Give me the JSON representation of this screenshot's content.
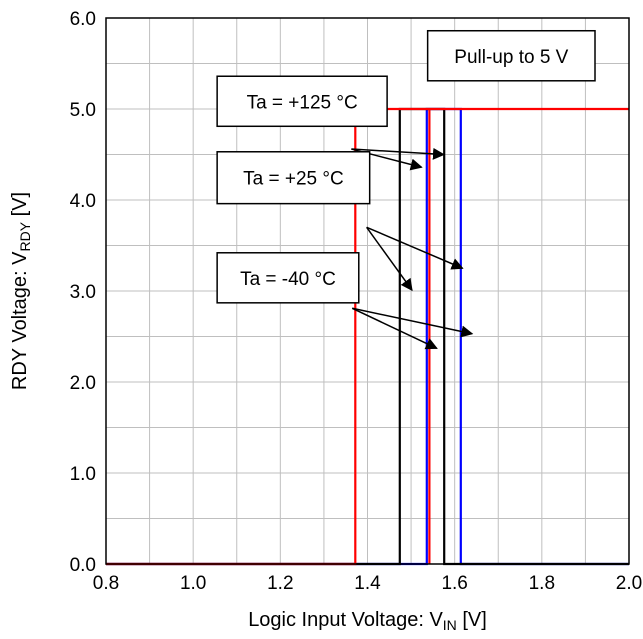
{
  "chart_data": {
    "type": "line",
    "title": "",
    "xlabel": "Logic Input Voltage: V",
    "xlabel_sub": "IN",
    "xlabel_unit": " [V]",
    "ylabel": "RDY Voltage: V",
    "ylabel_sub": "RDY",
    "ylabel_unit": " [V]",
    "xlim": [
      0.8,
      2.0
    ],
    "ylim": [
      0.0,
      6.0
    ],
    "grid": true,
    "xticks": [
      "0.8",
      "1.0",
      "1.2",
      "1.4",
      "1.6",
      "1.8",
      "2.0"
    ],
    "xtick_values": [
      0.8,
      1.0,
      1.2,
      1.4,
      1.6,
      1.8,
      2.0
    ],
    "yticks": [
      "0.0",
      "1.0",
      "2.0",
      "3.0",
      "4.0",
      "5.0",
      "6.0"
    ],
    "ytick_values": [
      0.0,
      1.0,
      2.0,
      3.0,
      4.0,
      5.0,
      6.0
    ],
    "series": [
      {
        "condition": "Ta = -40 °C",
        "color": "#0000ff",
        "x": [
          0.8,
          1.536,
          1.536,
          1.614,
          1.614,
          2.0
        ],
        "y": [
          0,
          0,
          5,
          5,
          0,
          0
        ]
      },
      {
        "condition": "Ta = +25 °C",
        "color": "#000000",
        "x": [
          0.8,
          1.474,
          1.474,
          1.576,
          1.576,
          2.0
        ],
        "y": [
          0,
          0,
          5,
          5,
          0,
          0
        ]
      },
      {
        "condition": "Ta = +125 °C",
        "color": "#ff0000",
        "x": [
          0.8,
          1.372,
          1.372,
          2.0
        ],
        "y": [
          0,
          0,
          5,
          5
        ]
      },
      {
        "condition": "Ta = +125 °C",
        "color": "#ff0000",
        "x": [
          1.542,
          1.542
        ],
        "y": [
          0,
          5
        ]
      }
    ],
    "annotations": [
      {
        "label": "Pull-up to 5 V",
        "box": {
          "x0": 1.538,
          "x1": 1.922,
          "y0": 5.31,
          "y1": 5.86
        },
        "arrows": []
      },
      {
        "label": "Ta = +125 °C",
        "box": {
          "x0": 1.055,
          "x1": 1.445,
          "y0": 4.81,
          "y1": 5.36
        },
        "arrows": [
          {
            "from": [
              1.363,
              4.56
            ],
            "to": [
              1.575,
              4.5
            ]
          },
          {
            "from": [
              1.363,
              4.56
            ],
            "to": [
              1.524,
              4.36
            ]
          }
        ]
      },
      {
        "label": "Ta = +25 °C",
        "box": {
          "x0": 1.055,
          "x1": 1.405,
          "y0": 3.96,
          "y1": 4.53
        },
        "arrows": [
          {
            "from": [
              1.398,
              3.7
            ],
            "to": [
              1.618,
              3.25
            ]
          },
          {
            "from": [
              1.398,
              3.7
            ],
            "to": [
              1.502,
              3.01
            ]
          }
        ]
      },
      {
        "label": "Ta = -40 °C",
        "box": {
          "x0": 1.055,
          "x1": 1.38,
          "y0": 2.87,
          "y1": 3.42
        },
        "arrows": [
          {
            "from": [
              1.365,
              2.81
            ],
            "to": [
              1.64,
              2.53
            ]
          },
          {
            "from": [
              1.365,
              2.81
            ],
            "to": [
              1.559,
              2.37
            ]
          }
        ]
      }
    ]
  }
}
